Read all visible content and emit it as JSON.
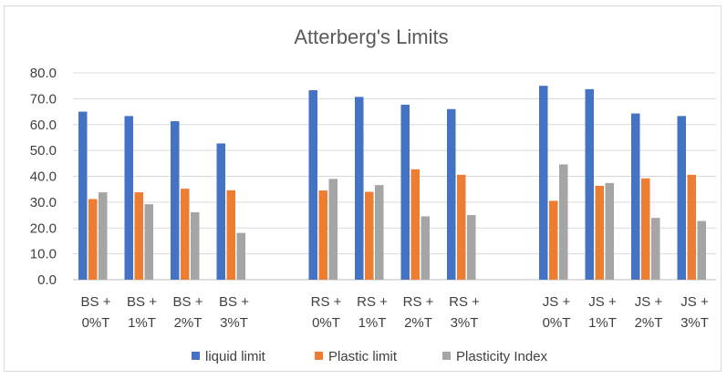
{
  "chart_data": {
    "type": "bar",
    "title": "Atterberg's Limits",
    "xlabel": "",
    "ylabel": "",
    "ylim": [
      0,
      80
    ],
    "yticks": [
      "0.0",
      "10.0",
      "20.0",
      "30.0",
      "40.0",
      "50.0",
      "60.0",
      "70.0",
      "80.0"
    ],
    "grid": true,
    "legend_position": "bottom",
    "groups": [
      {
        "categories": [
          [
            "BS +",
            "0%T"
          ],
          [
            "BS +",
            "1%T"
          ],
          [
            "BS +",
            "2%T"
          ],
          [
            "BS +",
            "3%T"
          ]
        ]
      },
      {
        "categories": [
          [
            "RS +",
            "0%T"
          ],
          [
            "RS +",
            "1%T"
          ],
          [
            "RS +",
            "2%T"
          ],
          [
            "RS +",
            "3%T"
          ]
        ]
      },
      {
        "categories": [
          [
            "JS +",
            "0%T"
          ],
          [
            "JS +",
            "1%T"
          ],
          [
            "JS +",
            "2%T"
          ],
          [
            "JS +",
            "3%T"
          ]
        ]
      }
    ],
    "series": [
      {
        "name": "liquid limit",
        "color": "#4472c4",
        "values": [
          65.0,
          63.3,
          61.3,
          52.7,
          73.3,
          70.7,
          67.7,
          66.0,
          75.0,
          73.7,
          64.3,
          63.3
        ]
      },
      {
        "name": "Plastic limit",
        "color": "#ed7d31",
        "values": [
          31.2,
          33.8,
          35.2,
          34.6,
          34.5,
          34.0,
          42.7,
          40.6,
          30.5,
          36.3,
          39.2,
          40.6
        ]
      },
      {
        "name": "Plasticity Index",
        "color": "#a5a5a5",
        "values": [
          33.8,
          29.2,
          26.1,
          18.1,
          39.0,
          36.6,
          24.5,
          25.0,
          44.6,
          37.4,
          23.9,
          22.7
        ]
      }
    ]
  }
}
